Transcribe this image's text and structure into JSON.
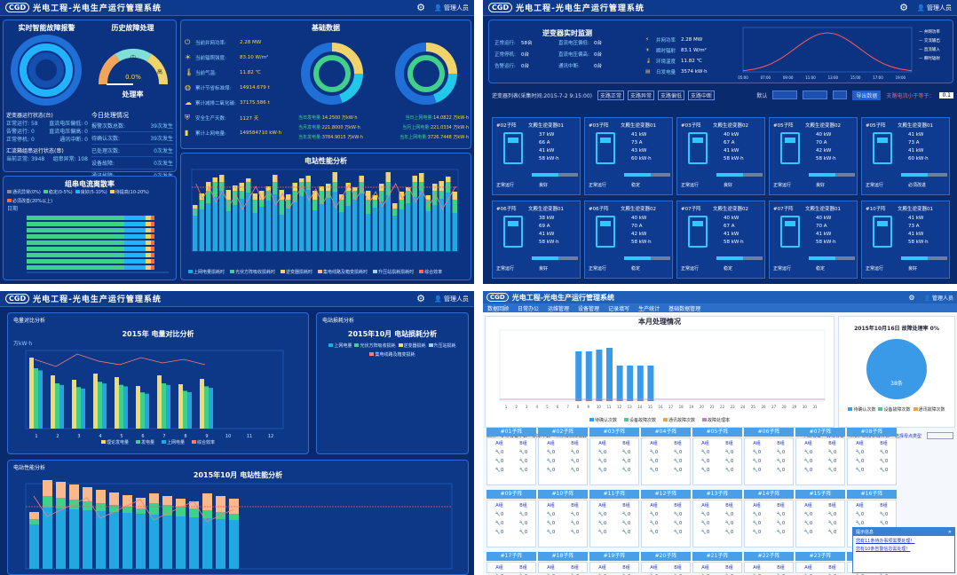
{
  "app": {
    "logo": "CGD",
    "title": "光电工程-光电生产运行管理系统",
    "user": "管理人员"
  },
  "q1": {
    "fault_title": "实时智能故障报警",
    "history_title": "历史故障处理",
    "rate_label": "处理率",
    "rate_value": "0.0%",
    "gauge_mid": "中",
    "gauge_high": "高",
    "inverter_status": "逆变器运行状态(台)",
    "inv_rows": [
      {
        "k": "正常运行:",
        "v": "58",
        "k2": "直流电压偏低:",
        "v2": "0"
      },
      {
        "k": "告警运行:",
        "v": "0",
        "k2": "直流电压偏高:",
        "v2": "0"
      },
      {
        "k": "正常停机:",
        "v": "0",
        "k2": "通讯中断:",
        "v2": "0"
      }
    ],
    "combiner_status": "汇流箱组串运行状态(串)",
    "combiner_row": {
      "k": "当前正常:",
      "v": "3948",
      "k2": "组串异常:",
      "v2": "108"
    },
    "today_title": "今日处理情况",
    "today_rows": [
      {
        "k": "报警次数总数:",
        "v": "39次发生"
      },
      {
        "k": "待确认次数:",
        "v": "39次发生"
      },
      {
        "k": "已处理次数:",
        "v": "0次发生"
      },
      {
        "k": "设备故障:",
        "v": "0次发生"
      },
      {
        "k": "通讯故障:",
        "v": "0次发生"
      }
    ],
    "base_title": "基础数据",
    "base_rows": [
      {
        "icon": "power-icon",
        "k": "当前并网功率:",
        "v": "2.28 MW"
      },
      {
        "icon": "sun-icon",
        "k": "当前辐照强度:",
        "v": "83.10 W/m²"
      },
      {
        "icon": "temp-icon",
        "k": "当前气温:",
        "v": "11.82 ℃"
      },
      {
        "icon": "globe-icon",
        "k": "累计节省标准煤:",
        "v": "14914.679 t"
      },
      {
        "icon": "cloud-icon",
        "k": "累计减排二氧化碳:",
        "v": "37175.586 t"
      },
      {
        "icon": "shield-icon",
        "k": "安全生产天数:",
        "v": "1127 天"
      },
      {
        "icon": "battery-icon",
        "k": "累计上网电量:",
        "v": "149584710 kW·h"
      }
    ],
    "gen_rows": [
      {
        "k": "当日发电量:",
        "v": "14.2500 万kW·h",
        "k2": "当日上网电量:",
        "v2": "14.0822 万kW·h"
      },
      {
        "k": "当月发电量:",
        "v": "221.8000 万kW·h",
        "k2": "当月上网电量:",
        "v2": "221.0334 万kW·h"
      },
      {
        "k": "当年发电量:",
        "v": "3784.9015 万kW·h",
        "k2": "当年上网电量:",
        "v2": "3726.7448 万kW·h"
      }
    ],
    "dispersion_title": "组串电流离散率",
    "disp_legend": [
      "通讯异常(0%)",
      "稳定(0-5%)",
      "良好(5-10%)",
      "待提高(10-20%)",
      "必须改善(20%以上)"
    ],
    "disp_unit": "日期",
    "perf_title": "电站性能分析",
    "perf_legend": [
      "上网电量损耗时",
      "光伏方阵吸收损耗时",
      "逆变器损耗时",
      "集电线路及箱变损耗时",
      "升压站损耗损耗时",
      "综合效率"
    ]
  },
  "q2": {
    "inverter_title": "逆变器实时监测",
    "status_rows": [
      {
        "k": "正常运行:",
        "v": "58台",
        "k2": "直流电压偏低:",
        "v2": "0台"
      },
      {
        "k": "正常停机:",
        "v": "0台",
        "k2": "直流电压偏高:",
        "v2": "0台"
      },
      {
        "k": "告警运行:",
        "v": "0台",
        "k2": "通讯中断:",
        "v2": "0台"
      }
    ],
    "weather_rows": [
      {
        "k": "并网功率",
        "v": "2.28 MW"
      },
      {
        "k": "瞬时辐射",
        "v": "83.1 W/m²"
      },
      {
        "k": "环境温度",
        "v": "11.82 ℃"
      },
      {
        "k": "日发电量",
        "v": "3574 kW·h"
      }
    ],
    "chart_legend": [
      "并网功率",
      "交流输出",
      "直流输入",
      "瞬时辐射"
    ],
    "x_ticks": [
      "05:00",
      "06:00",
      "07:00",
      "08:00",
      "09:00",
      "10:00",
      "11:00",
      "12:00",
      "13:00",
      "14:00",
      "15:00",
      "16:00",
      "17:00",
      "18:00",
      "19:00",
      "20:00"
    ],
    "list_label": "逆变器列表(采集时间:2015-7-2 9:15:00)",
    "filters": [
      "支路正常",
      "支路异常",
      "支路偏低",
      "支路中断"
    ],
    "default_label": "默认",
    "export_label": "导出数据",
    "threshold_label": "支路电流小于等于：",
    "threshold_value": "0.1",
    "cards": [
      {
        "name": "#02子阵",
        "model": "文殿生逆变器01",
        "p": "37 kW",
        "a": "66 A",
        "kw2": "41 kW",
        "e": "58 kW·h",
        "st": "正常运行",
        "q": "良好"
      },
      {
        "name": "#03子阵",
        "model": "文殿生逆变器01",
        "p": "41 kW",
        "a": "73 A",
        "kw2": "43 kW",
        "e": "60 kW·h",
        "st": "正常运行",
        "q": "稳定"
      },
      {
        "name": "#03子阵",
        "model": "文殿生逆变器02",
        "p": "40 kW",
        "a": "67 A",
        "kw2": "41 kW",
        "e": "58 kW·h",
        "st": "正常运行",
        "q": "良好"
      },
      {
        "name": "#05子阵",
        "model": "文殿生逆变器02",
        "p": "40 kW",
        "a": "70 A",
        "kw2": "42 kW",
        "e": "58 kW·h",
        "st": "正常运行",
        "q": "良好"
      },
      {
        "name": "#05子阵",
        "model": "文殿生逆变器01",
        "p": "41 kW",
        "a": "73 A",
        "kw2": "41 kW",
        "e": "60 kW·h",
        "st": "正常运行",
        "q": "必须改进"
      },
      {
        "name": "#06子阵",
        "model": "文殿生逆变器01",
        "p": "38 kW",
        "a": "69 A",
        "kw2": "41 kW",
        "e": "58 kW·h",
        "st": "正常运行",
        "q": "良好"
      },
      {
        "name": "#06子阵",
        "model": "文殿生逆变器02",
        "p": "40 kW",
        "a": "70 A",
        "kw2": "42 kW",
        "e": "58 kW·h",
        "st": "正常运行",
        "q": "稳定"
      },
      {
        "name": "#07子阵",
        "model": "文殿生逆变器02",
        "p": "40 kW",
        "a": "67 A",
        "kw2": "41 kW",
        "e": "58 kW·h",
        "st": "正常运行",
        "q": "稳定"
      },
      {
        "name": "#07子阵",
        "model": "文殿生逆变器01",
        "p": "40 kW",
        "a": "70 A",
        "kw2": "41 kW",
        "e": "58 kW·h",
        "st": "正常运行",
        "q": "稳定"
      },
      {
        "name": "#10子阵",
        "model": "文殿生逆变器01",
        "p": "41 kW",
        "a": "73 A",
        "kw2": "41 kW",
        "e": "58 kW·h",
        "st": "正常运行",
        "q": "良好"
      }
    ]
  },
  "q3": {
    "panel1_tab": "电量对比分析",
    "panel2_tab": "电站损耗分析",
    "panel3_tab": "电站性能分析",
    "chart1_title": "2015年 电量对比分析",
    "chart1_yunit": "万kW·h",
    "chart1_legend": [
      "理论发电量",
      "发电量",
      "上网电量",
      "综合效率"
    ],
    "chart2_title": "2015年10月 电站损耗分析",
    "chart2_legend": [
      "上网电量",
      "光伏方阵吸收损耗",
      "逆变器损耗",
      "升压站损耗",
      "集电线路及箱变损耗"
    ],
    "chart3_title": "2015年10月 电站性能分析"
  },
  "q4": {
    "menu": [
      "数据回顾",
      "日常办公",
      "运维管理",
      "设备管理",
      "记录填写",
      "生产统计",
      "基础数据管理"
    ],
    "chart_title": "本月处理情况",
    "chart_legend": [
      "待确认次数",
      "设备故障次数",
      "通讯故障次数",
      "故障处理率"
    ],
    "pie_title": "2015年10月16日 故障处理率 0%",
    "pie_label": "38条",
    "pie_legend": [
      "待确认次数",
      "设备故障次数",
      "通讯故障次数"
    ],
    "toolbar": [
      "图例",
      "更换设备个数",
      "刷新个数",
      "电池板清洗指数"
    ],
    "toolbar_right": [
      "为转设备",
      "转维设备",
      "常见问题及处理方式",
      "选择母点类型"
    ],
    "hdr_row1": [
      "#01子阵",
      "#02子阵",
      "#03子阵",
      "#04子阵",
      "#05子阵",
      "#06子阵",
      "#07子阵",
      "#08子阵"
    ],
    "hdr_row2": [
      "#09子阵",
      "#10子阵",
      "#11子阵",
      "#12子阵",
      "#13子阵",
      "#14子阵",
      "#15子阵",
      "#16子阵"
    ],
    "hdr_row3": [
      "#17子阵",
      "#18子阵",
      "#19子阵",
      "#20子阵",
      "#21子阵",
      "#22子阵",
      "#23子阵",
      "#24子阵"
    ],
    "ab": [
      "A组",
      "B组"
    ],
    "popup_title": "提示信息",
    "popup_lines": [
      "您有11条待办事项需要处理！",
      "您有10条告警信息需处理！"
    ]
  }
}
